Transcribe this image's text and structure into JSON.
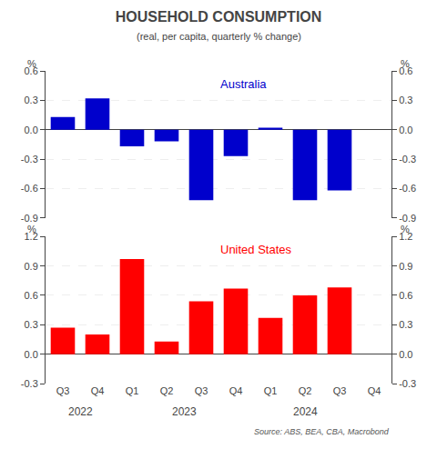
{
  "chart_data": [
    {
      "type": "bar",
      "title": "HOUSEHOLD CONSUMPTION",
      "subtitle": "(real, per capita, quarterly % change)",
      "categories": [
        "Q3",
        "Q4",
        "Q1",
        "Q2",
        "Q3",
        "Q4",
        "Q1",
        "Q2",
        "Q3",
        "Q4"
      ],
      "series": [
        {
          "name": "Australia",
          "color": "#0000cc",
          "values": [
            0.13,
            0.32,
            -0.17,
            -0.12,
            -0.72,
            -0.27,
            0.02,
            -0.72,
            -0.62,
            0.0
          ]
        }
      ],
      "ylabel": "%",
      "y2label": "%",
      "ylim": [
        -0.9,
        0.6
      ],
      "yticks": [
        -0.9,
        -0.6,
        -0.3,
        {
          "value": 0,
          "label": "0.0"
        },
        0.3,
        0.6
      ],
      "y2lim": [
        -0.9,
        0.6
      ],
      "y2ticks": [
        -0.9,
        -0.6,
        -0.3,
        {
          "value": 0,
          "label": "0.0"
        },
        0.3,
        0.6
      ],
      "grid": true,
      "tick_labels": "y"
    },
    {
      "type": "bar",
      "categories": [
        "Q3",
        "Q4",
        "Q1",
        "Q2",
        "Q3",
        "Q4",
        "Q1",
        "Q2",
        "Q3",
        "Q4"
      ],
      "series": [
        {
          "name": "United States",
          "color": "#ff0000",
          "values": [
            0.27,
            0.2,
            0.97,
            0.13,
            0.54,
            0.67,
            0.37,
            0.6,
            0.68,
            0.0
          ]
        }
      ],
      "ylabel": "%",
      "y2label": "%",
      "ylim": [
        -0.3,
        1.2
      ],
      "yticks": [
        -0.3,
        {
          "value": 0,
          "label": "0.0"
        },
        0.3,
        0.6,
        0.9,
        1.2
      ],
      "y2lim": [
        -0.3,
        1.2
      ],
      "y2ticks": [
        -0.3,
        {
          "value": 0,
          "label": "0.0"
        },
        0.3,
        0.6,
        0.9,
        1.2
      ],
      "annotations": [
        {
          "text": "2022",
          "x": 0.5
        },
        {
          "text": "2023",
          "x": 3.5
        },
        {
          "text": "2024",
          "x": 7.0
        }
      ],
      "source": "Source: ABS, BEA, CBA, Macrobond",
      "grid": true
    }
  ]
}
